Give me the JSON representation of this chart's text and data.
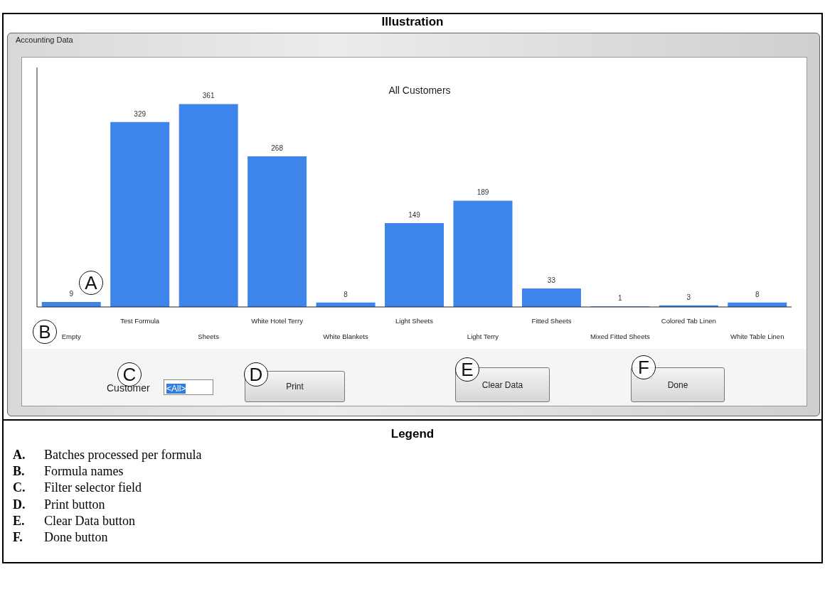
{
  "chart_data": {
    "type": "bar",
    "title": "All Customers",
    "categories": [
      "Empty",
      "Test Formula",
      "Sheets",
      "White Hotel Terry",
      "White Blankets",
      "Light Sheets",
      "Light Terry",
      "Fitted Sheets",
      "Mixed Fitted Sheets",
      "Colored Tab Linen",
      "White Table Linen"
    ],
    "values": [
      9,
      329,
      361,
      268,
      8,
      149,
      189,
      33,
      1,
      3,
      8
    ],
    "color": "#3d85ea",
    "data_labels": true,
    "tick_labels": "x",
    "grid": false,
    "legend": false,
    "annotations": [
      "Illustration",
      "Accounting Data",
      "Customer",
      "<All>",
      "Print",
      "Clear Data",
      "Done",
      "Legend",
      "A.",
      "Batches processed per formula",
      "B.",
      "Formula names",
      "C.",
      "Filter selector field",
      "D.",
      "Print button",
      "E.",
      "Clear Data button",
      "F.",
      "Done button",
      "A",
      "B",
      "C",
      "D",
      "E",
      "F"
    ]
  }
}
